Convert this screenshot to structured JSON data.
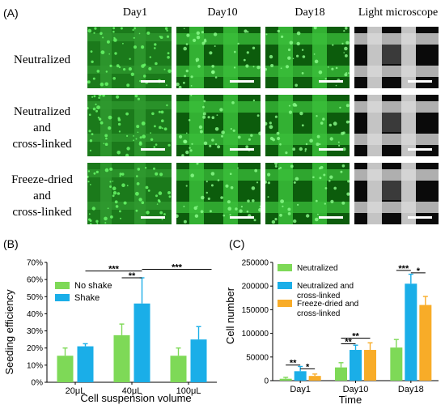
{
  "panel_a": {
    "label": "(A)",
    "columns": [
      "Day1",
      "Day10",
      "Day18",
      "Light microscope"
    ],
    "rows": [
      {
        "label_lines": [
          "Neutralized"
        ]
      },
      {
        "label_lines": [
          "Neutralized",
          "and",
          "cross-linked"
        ]
      },
      {
        "label_lines": [
          "Freeze-dried",
          "and",
          "cross-linked"
        ]
      }
    ]
  },
  "colors": {
    "green": "#7ed957",
    "blue": "#1aaee8",
    "orange": "#f8ac28"
  },
  "chart_data": [
    {
      "panel": "(B)",
      "type": "bar",
      "xlabel": "Cell suspension volume",
      "ylabel": "Seeding efficiency",
      "ylim": [
        0,
        70
      ],
      "yticks": [
        "0%",
        "10%",
        "20%",
        "30%",
        "40%",
        "50%",
        "60%",
        "70%"
      ],
      "categories": [
        "20μL",
        "40μL",
        "100μL"
      ],
      "series": [
        {
          "name": "No shake",
          "color": "#7ed957",
          "values": [
            15.5,
            27.5,
            15.5
          ],
          "errors": [
            4.5,
            6.5,
            4.5
          ]
        },
        {
          "name": "Shake",
          "color": "#1aaee8",
          "values": [
            21,
            46,
            25
          ],
          "errors": [
            1.5,
            15,
            7.5
          ]
        }
      ],
      "legend": "top-left",
      "significance": [
        "**",
        "***",
        "***"
      ]
    },
    {
      "panel": "(C)",
      "type": "bar",
      "xlabel": "Time",
      "ylabel": "Cell number",
      "ylim": [
        0,
        250000
      ],
      "yticks": [
        "0",
        "50000",
        "100000",
        "150000",
        "200000",
        "250000"
      ],
      "categories": [
        "Day1",
        "Day10",
        "Day18"
      ],
      "series": [
        {
          "name": "Neutralized",
          "color": "#7ed957",
          "values": [
            4000,
            28000,
            70000
          ],
          "errors": [
            3000,
            10000,
            17000
          ]
        },
        {
          "name": "Neutralized and cross-linked",
          "color": "#1aaee8",
          "values": [
            20000,
            65000,
            205000
          ],
          "errors": [
            10000,
            10000,
            20000
          ]
        },
        {
          "name": "Freeze-dried and cross-linked",
          "color": "#f8ac28",
          "values": [
            10000,
            65000,
            160000
          ],
          "errors": [
            4000,
            15000,
            18000
          ]
        }
      ],
      "legend": "top-left",
      "significance": [
        "**",
        "*",
        "**",
        "**",
        "***",
        "*"
      ]
    }
  ]
}
